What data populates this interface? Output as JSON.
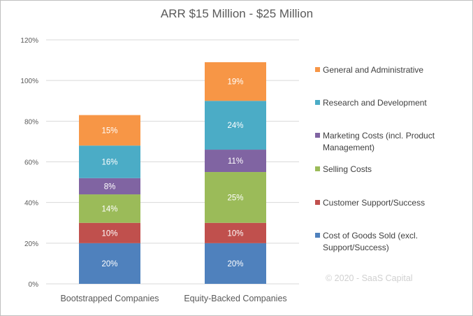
{
  "chart_data": {
    "type": "bar",
    "stacked": true,
    "title": "ARR $15 Million - $25 Million",
    "xlabel": "",
    "ylabel": "",
    "ylim": [
      0,
      120
    ],
    "y_ticks": [
      "0%",
      "20%",
      "40%",
      "60%",
      "80%",
      "100%",
      "120%"
    ],
    "grid": true,
    "legend_position": "right",
    "categories": [
      "Bootstrapped Companies",
      "Equity-Backed Companies"
    ],
    "series": [
      {
        "name": "Cost of Goods Sold (excl. Support/Success)",
        "name_lines": [
          "Cost of Goods Sold (excl.",
          "Support/Success)"
        ],
        "color": "#4F81BD",
        "values": [
          20,
          20
        ],
        "labels": [
          "20%",
          "20%"
        ]
      },
      {
        "name": "Customer Support/Success",
        "name_lines": [
          "Customer Support/Success"
        ],
        "color": "#C0504D",
        "values": [
          10,
          10
        ],
        "labels": [
          "10%",
          "10%"
        ]
      },
      {
        "name": "Selling Costs",
        "name_lines": [
          "Selling Costs"
        ],
        "color": "#9BBB59",
        "values": [
          14,
          25
        ],
        "labels": [
          "14%",
          "25%"
        ]
      },
      {
        "name": "Marketing Costs (incl. Product Management)",
        "name_lines": [
          "Marketing Costs (incl. Product",
          "Management)"
        ],
        "color": "#8064A2",
        "values": [
          8,
          11
        ],
        "labels": [
          "8%",
          "11%"
        ]
      },
      {
        "name": "Research and Development",
        "name_lines": [
          "Research and Development"
        ],
        "color": "#4BACC6",
        "values": [
          16,
          24
        ],
        "labels": [
          "16%",
          "24%"
        ]
      },
      {
        "name": "General and Administrative",
        "name_lines": [
          "General and Administrative"
        ],
        "color": "#F79646",
        "values": [
          15,
          19
        ],
        "labels": [
          "15%",
          "19%"
        ]
      }
    ],
    "watermark": "© 2020 - SaaS Capital"
  }
}
